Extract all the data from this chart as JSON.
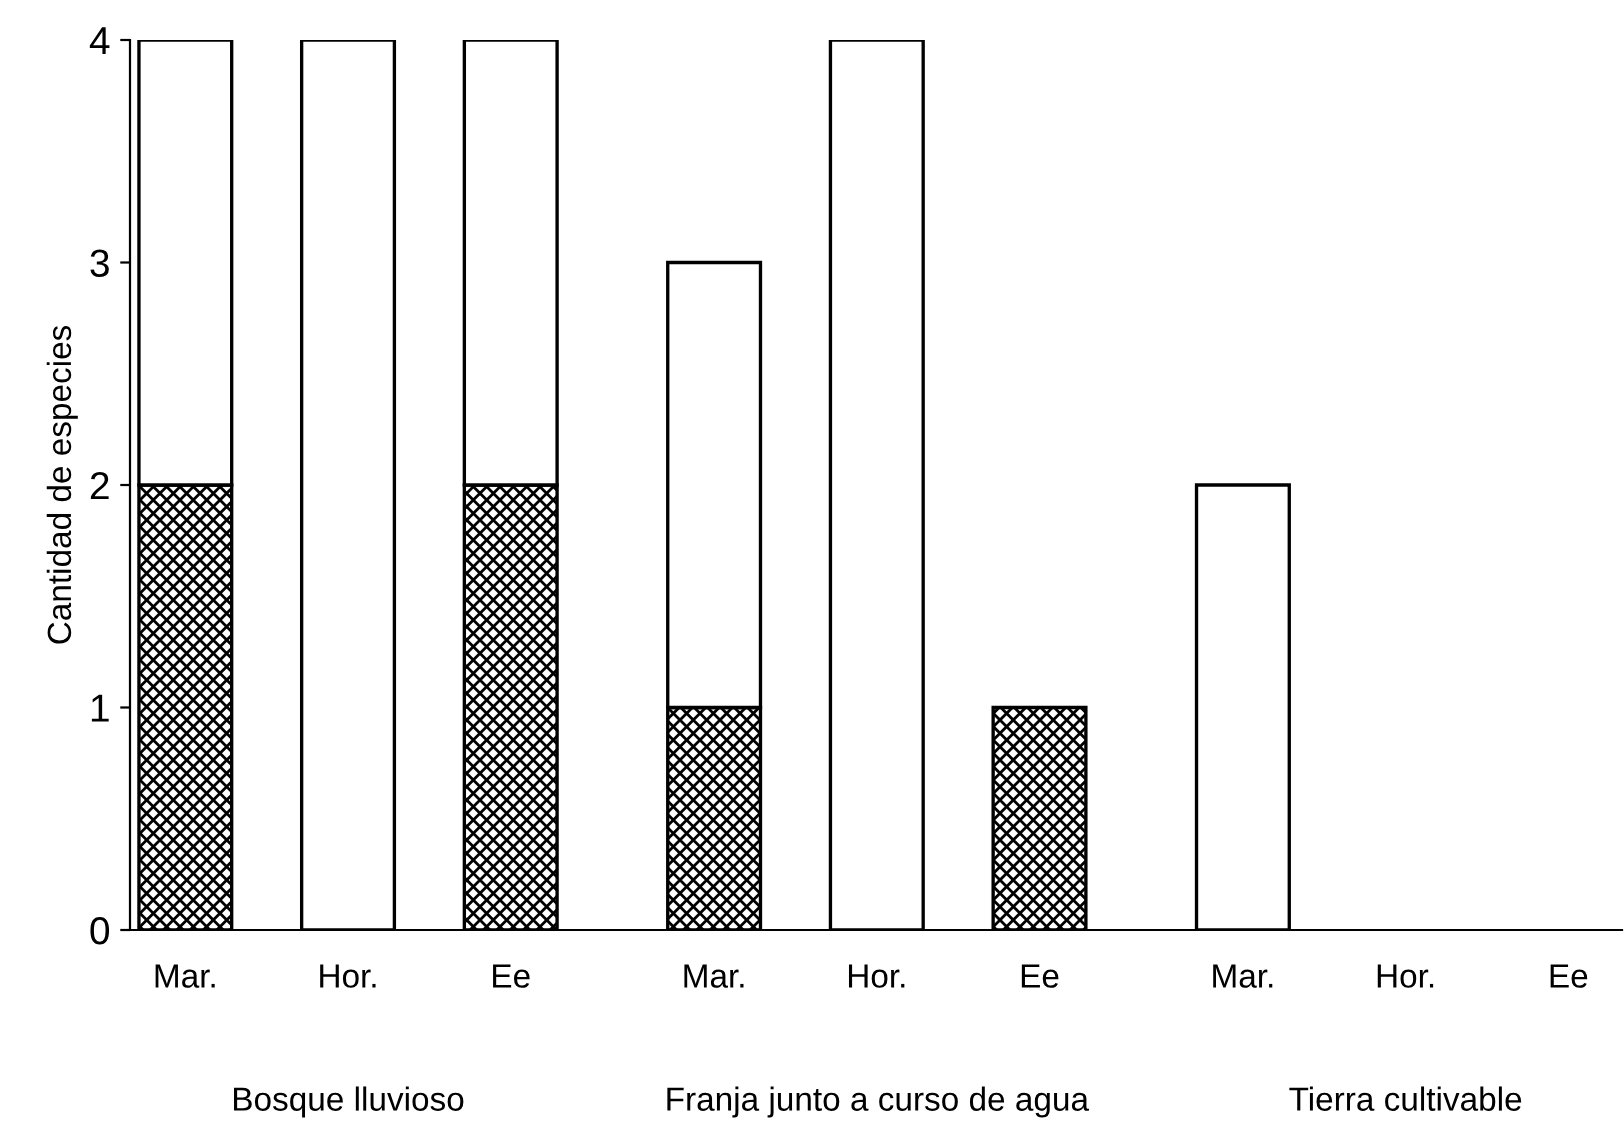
{
  "chart_data": {
    "type": "bar",
    "stacked": true,
    "ylabel": "Cantidad de especies",
    "categories": [
      "Mar.",
      "Hor.",
      "Ee",
      "Mar.",
      "Hor.",
      "Ee",
      "Mar.",
      "Hor.",
      "Ee"
    ],
    "series": [
      {
        "color": "#000000",
        "values": [
          2,
          0,
          2,
          1,
          0,
          1,
          0,
          0,
          0
        ]
      },
      {
        "color": "#ffffff",
        "values": [
          2,
          4,
          2,
          2,
          4,
          0,
          2,
          0,
          0
        ]
      }
    ],
    "ylim": [
      0,
      4
    ],
    "yticks": [
      0,
      1,
      2,
      3,
      4
    ],
    "grid": false,
    "legend": false,
    "annotations": [
      "Bosque lluvioso",
      "Franja junto a curso de agua",
      "Tierra cultivable"
    ]
  }
}
